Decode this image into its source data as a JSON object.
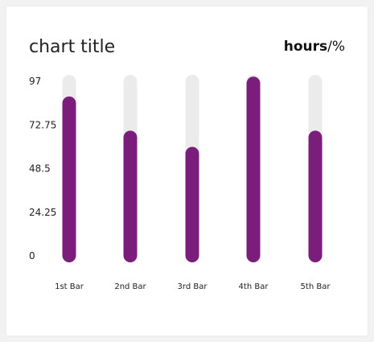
{
  "chart_data": {
    "type": "bar",
    "title": "chart title",
    "unit_label": {
      "bold": "hours",
      "rest": "/%"
    },
    "categories": [
      "1st Bar",
      "2nd Bar",
      "3rd Bar",
      "4th Bar",
      "5th Bar"
    ],
    "values": [
      85,
      66,
      57,
      96,
      66
    ],
    "ylim": [
      0,
      97
    ],
    "yticks": [
      "97",
      "72.75",
      "48.5",
      "24.25",
      "0"
    ],
    "ytick_values": [
      97,
      72.75,
      48.5,
      24.25,
      0
    ],
    "grid": false,
    "colors": {
      "bar": "#7b1e7b",
      "track": "#ebebeb"
    }
  }
}
